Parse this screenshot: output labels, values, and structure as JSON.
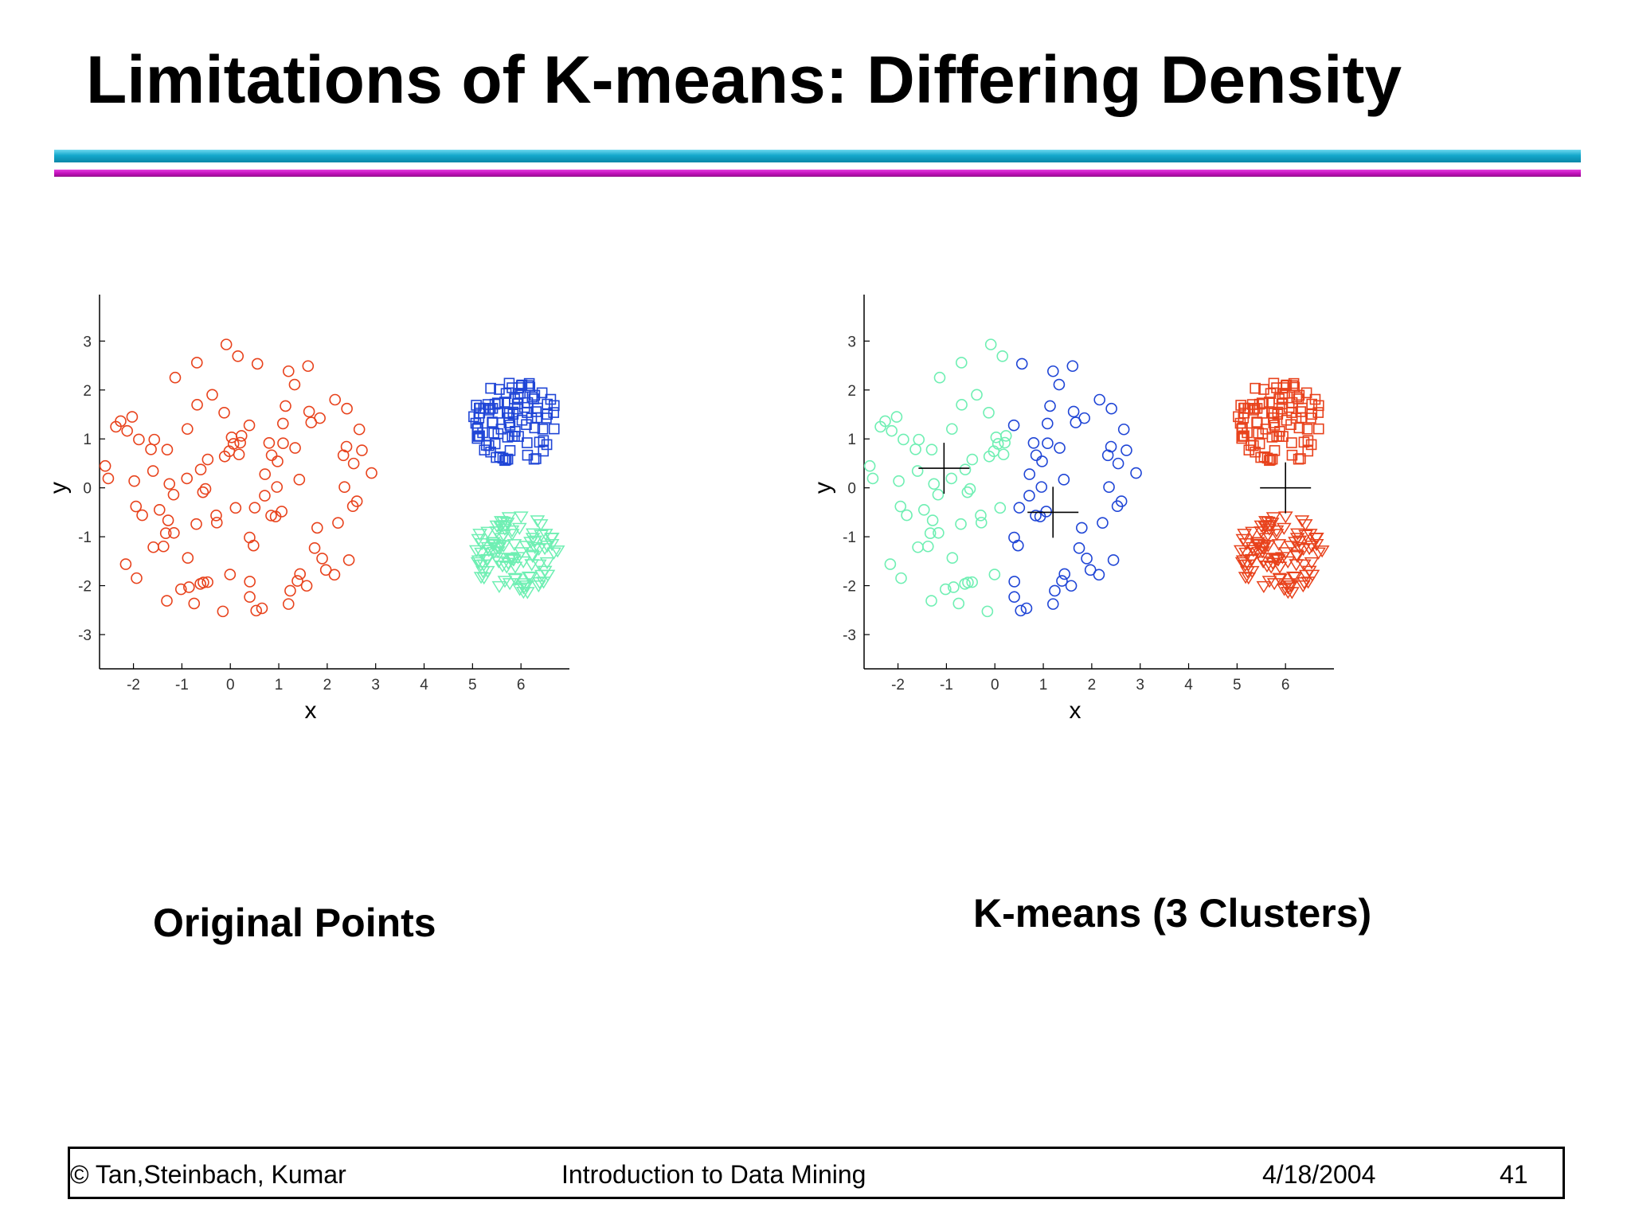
{
  "slide": {
    "title": "Limitations of K-means: Differing Density",
    "caption_left": "Original Points",
    "caption_right": "K-means (3 Clusters)"
  },
  "footer": {
    "copyright": "© Tan,Steinbach, Kumar",
    "course": "Introduction to Data Mining",
    "date": "4/18/2004",
    "page": "41"
  },
  "colors": {
    "red": "#e8421c",
    "blue": "#1f45d6",
    "green": "#6fefb3",
    "axis": "#000000"
  },
  "chart_data": [
    {
      "type": "scatter",
      "title": "",
      "xlabel": "x",
      "ylabel": "y",
      "xlim": [
        -2.7,
        7.0
      ],
      "ylim": [
        -3.7,
        3.95
      ],
      "xticks": [
        "-2",
        "-1",
        "0",
        "1",
        "2",
        "3",
        "4",
        "5",
        "6"
      ],
      "yticks": [
        "-3",
        "-2",
        "-1",
        "0",
        "1",
        "2",
        "3"
      ],
      "grid": false,
      "series": [
        {
          "marker": "circle",
          "color": "red",
          "region": {
            "cx": 0.1,
            "cy": 0.1,
            "rx": 2.85,
            "ry": 2.9
          },
          "count": 110,
          "seed": 11
        },
        {
          "marker": "square",
          "color": "blue",
          "region": {
            "cx": 5.9,
            "cy": 1.35,
            "rx": 0.9,
            "ry": 0.85
          },
          "count": 100,
          "seed": 23
        },
        {
          "marker": "triangle",
          "color": "green",
          "region": {
            "cx": 5.9,
            "cy": -1.35,
            "rx": 0.9,
            "ry": 0.8
          },
          "count": 100,
          "seed": 37
        }
      ]
    },
    {
      "type": "scatter",
      "title": "",
      "xlabel": "x",
      "ylabel": "y",
      "xlim": [
        -2.7,
        7.0
      ],
      "ylim": [
        -3.7,
        3.95
      ],
      "xticks": [
        "-2",
        "-1",
        "0",
        "1",
        "2",
        "3",
        "4",
        "5",
        "6"
      ],
      "yticks": [
        "-3",
        "-2",
        "-1",
        "0",
        "1",
        "2",
        "3"
      ],
      "grid": false,
      "split_x": 0.3,
      "series": [
        {
          "marker": "circle",
          "color": "green",
          "region": {
            "cx": 0.1,
            "cy": 0.1,
            "rx": 2.85,
            "ry": 2.9
          },
          "count": 110,
          "seed": 11,
          "part": "left"
        },
        {
          "marker": "circle",
          "color": "blue",
          "region": {
            "cx": 0.1,
            "cy": 0.1,
            "rx": 2.85,
            "ry": 2.9
          },
          "count": 110,
          "seed": 11,
          "part": "right"
        },
        {
          "marker": "square",
          "color": "red",
          "region": {
            "cx": 5.9,
            "cy": 1.35,
            "rx": 0.9,
            "ry": 0.85
          },
          "count": 100,
          "seed": 23
        },
        {
          "marker": "triangle",
          "color": "red",
          "region": {
            "cx": 5.9,
            "cy": -1.35,
            "rx": 0.9,
            "ry": 0.8
          },
          "count": 100,
          "seed": 37
        }
      ],
      "centroids": [
        {
          "x": -1.05,
          "y": 0.4
        },
        {
          "x": 1.2,
          "y": -0.5
        },
        {
          "x": 6.0,
          "y": 0.0
        }
      ]
    }
  ]
}
